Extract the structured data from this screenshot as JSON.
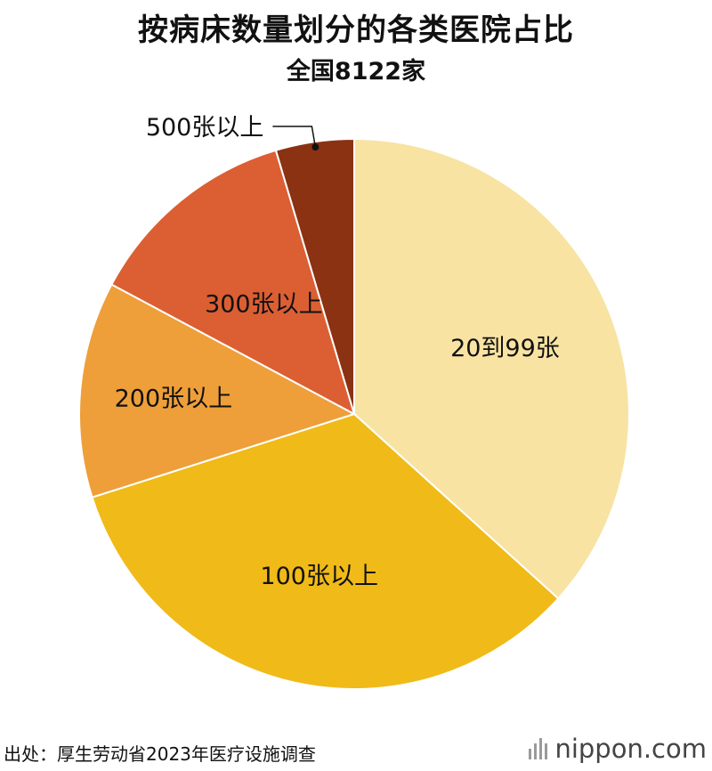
{
  "chart_data": {
    "type": "pie",
    "title": "按病床数量划分的各类医院占比",
    "subtitle": "全国8122家",
    "slices": [
      {
        "label": "20到99张",
        "value": 36.7,
        "color": "#F8E3A3"
      },
      {
        "label": "100张以上",
        "value": 33.4,
        "color": "#F0BA18"
      },
      {
        "label": "200张以上",
        "value": 12.7,
        "color": "#EE9F3A"
      },
      {
        "label": "300张以上",
        "value": 12.6,
        "color": "#DB5F33"
      },
      {
        "label": "500张以上",
        "value": 4.6,
        "color": "#8B3212"
      }
    ],
    "start_angle_deg": 0,
    "direction": "clockwise",
    "legend": "none"
  },
  "footer": {
    "source": "出处：厚生劳动省2023年医疗设施调查",
    "brand_name": "nippon",
    "brand_suffix": ".com"
  }
}
